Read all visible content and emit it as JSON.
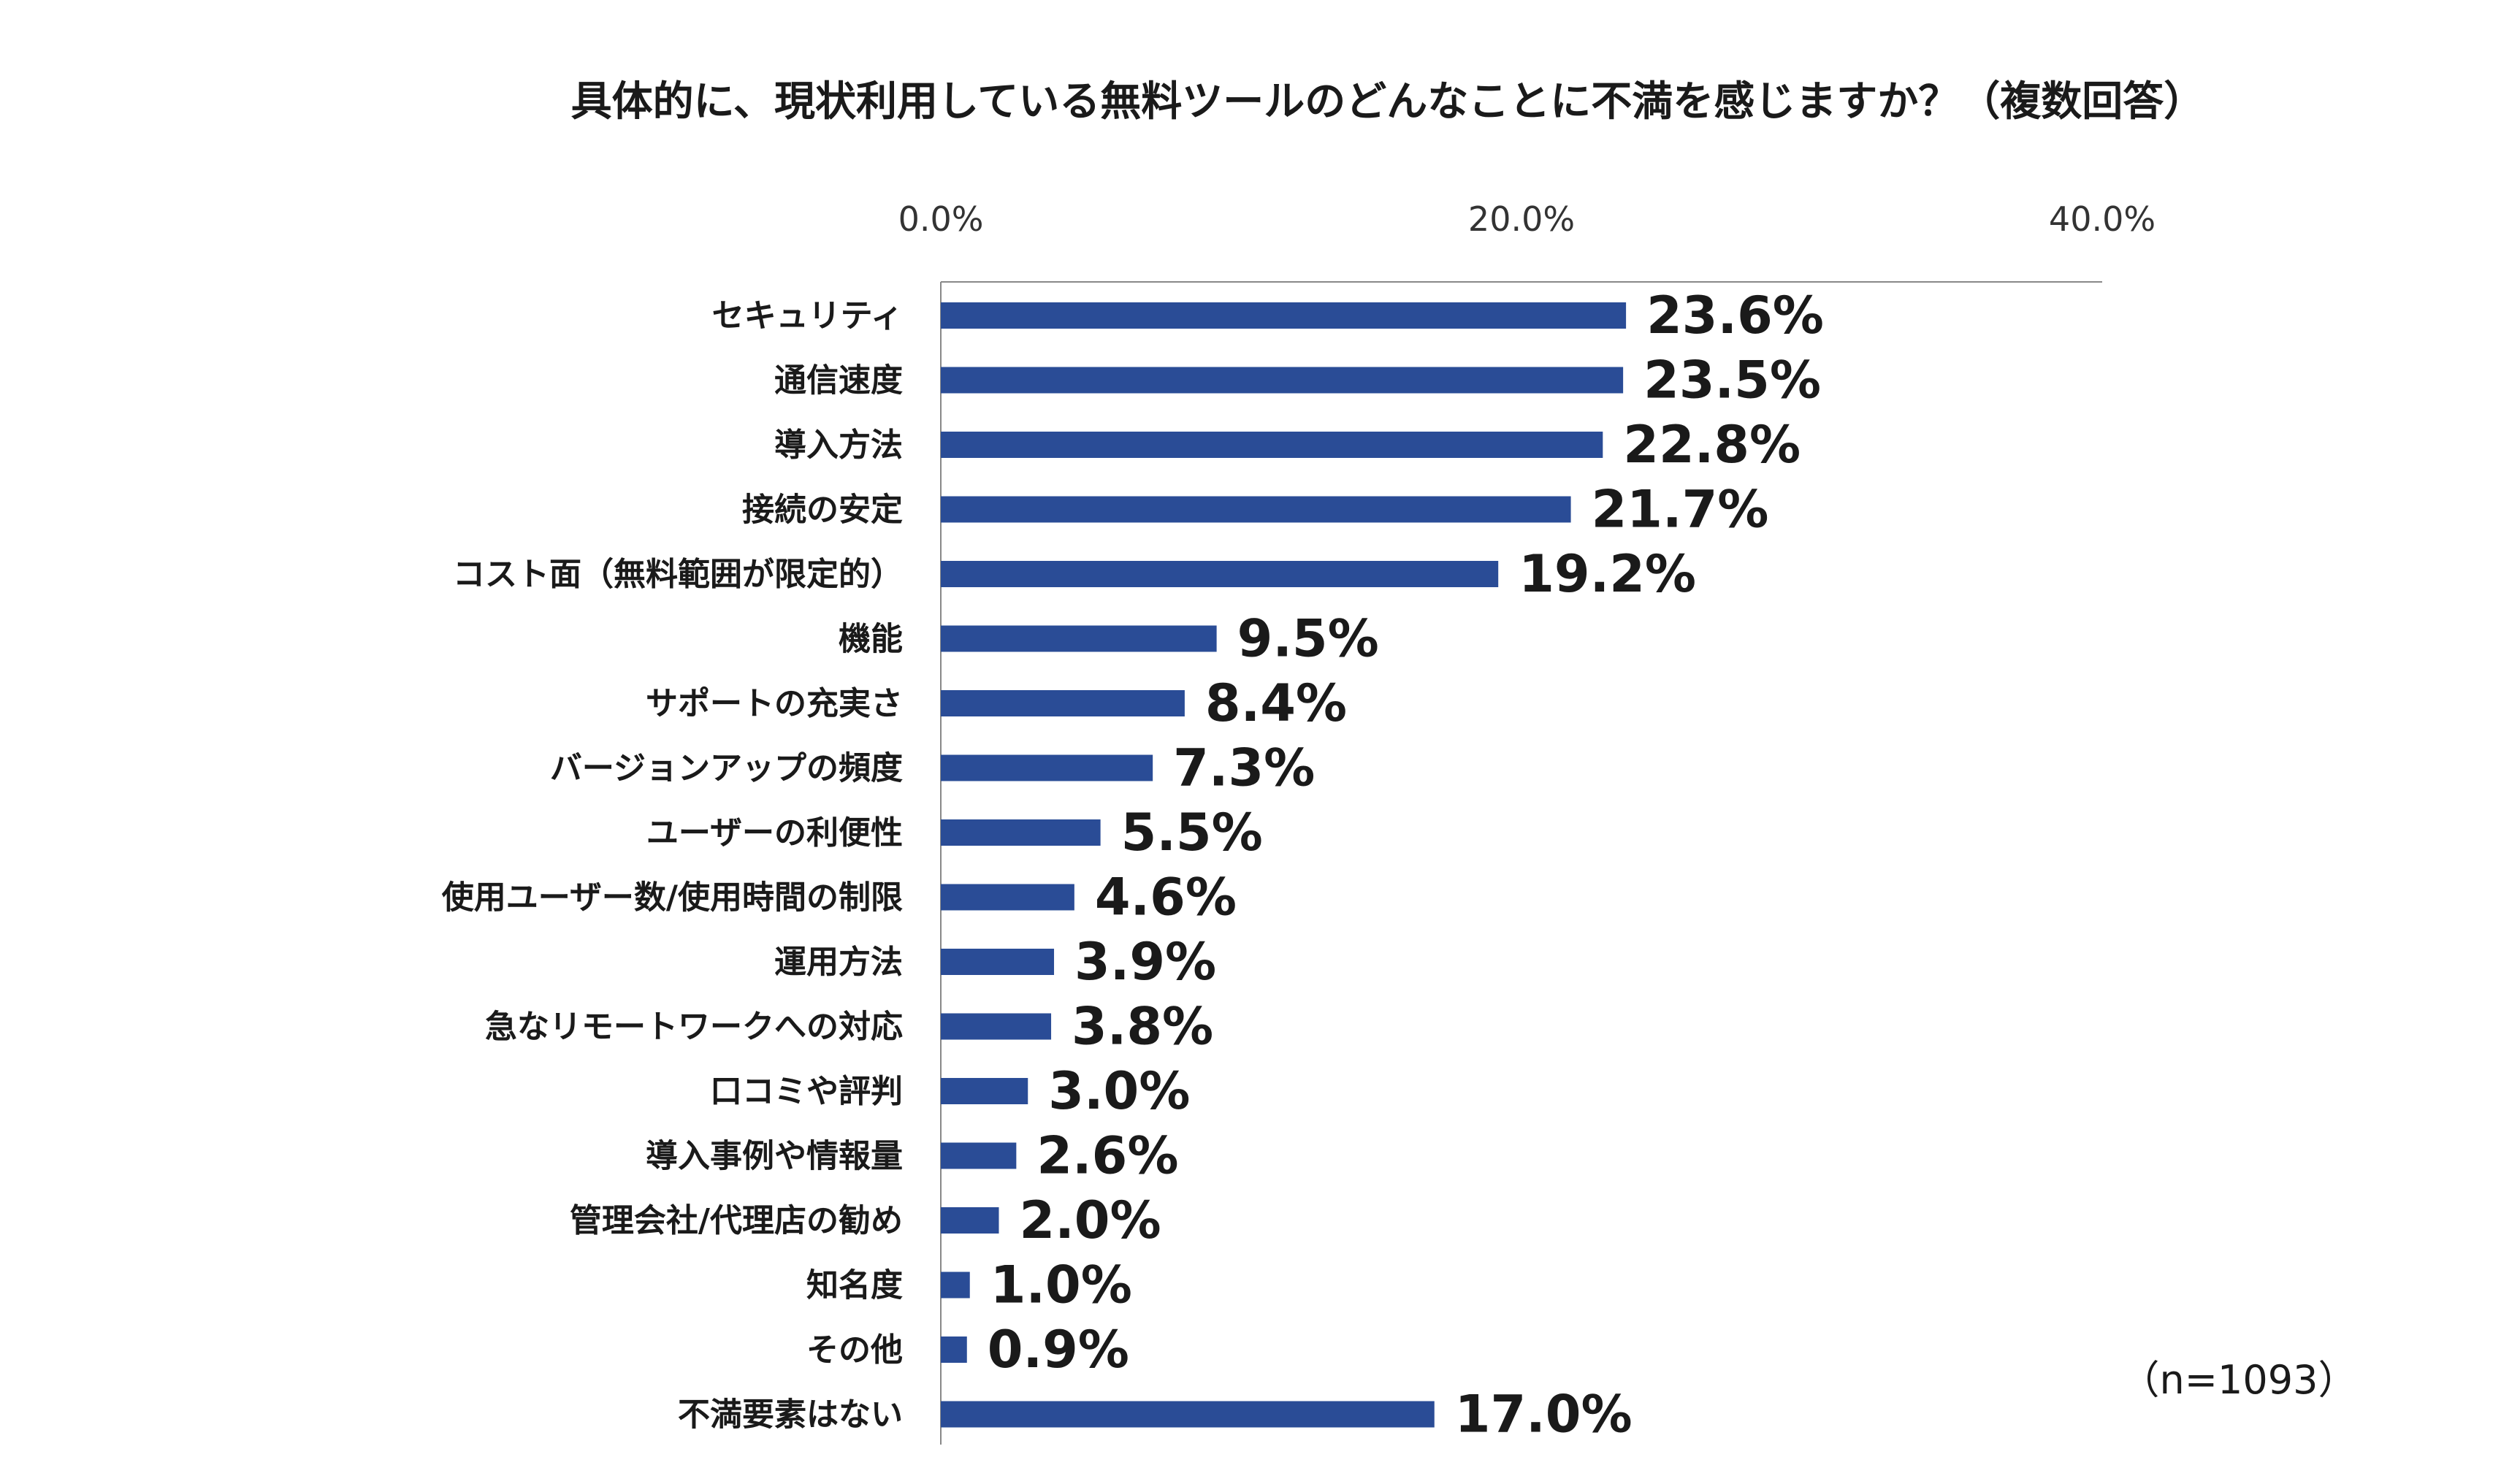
{
  "chart_data": {
    "type": "bar",
    "orientation": "horizontal",
    "title": "具体的に、現状利用している無料ツールのどんなことに不満を感じますか？（複数回答）",
    "categories": [
      "セキュリティ",
      "通信速度",
      "導入方法",
      "接続の安定",
      "コスト面（無料範囲が限定的）",
      "機能",
      "サポートの充実さ",
      "バージョンアップの頻度",
      "ユーザーの利便性",
      "使用ユーザー数/使用時間の制限",
      "運用方法",
      "急なリモートワークへの対応",
      "口コミや評判",
      "導入事例や情報量",
      "管理会社/代理店の勧め",
      "知名度",
      "その他",
      "不満要素はない"
    ],
    "values": [
      23.6,
      23.5,
      22.8,
      21.7,
      19.2,
      9.5,
      8.4,
      7.3,
      5.5,
      4.6,
      3.9,
      3.8,
      3.0,
      2.6,
      2.0,
      1.0,
      0.9,
      17.0
    ],
    "value_labels": [
      "23.6%",
      "23.5%",
      "22.8%",
      "21.7%",
      "19.2%",
      "9.5%",
      "8.4%",
      "7.3%",
      "5.5%",
      "4.6%",
      "3.9%",
      "3.8%",
      "3.0%",
      "2.6%",
      "2.0%",
      "1.0%",
      "0.9%",
      "17.0%"
    ],
    "xlim": [
      0,
      40
    ],
    "ticks": [
      0,
      20,
      40
    ],
    "tick_labels": [
      "0.0%",
      "20.0%",
      "40.0%"
    ],
    "axis_position": "top",
    "note": "（n=1093）",
    "bar_color": "#2a4c96",
    "axis_color": "#888888"
  }
}
